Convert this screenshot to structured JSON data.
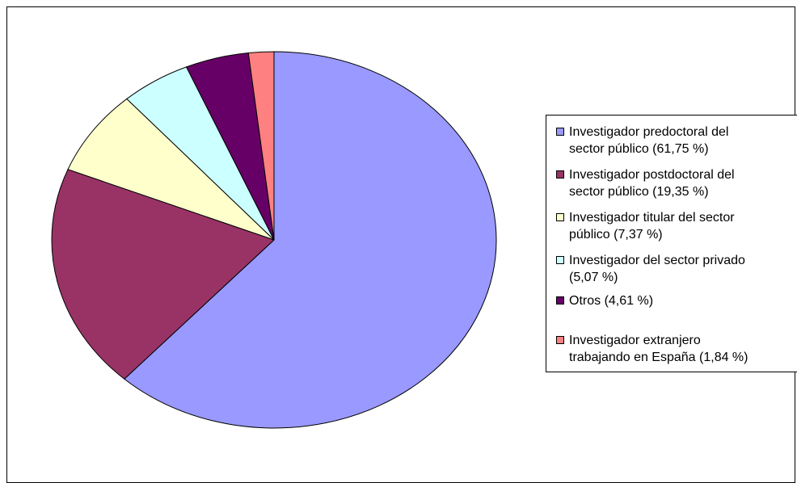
{
  "chart_data": {
    "type": "pie",
    "title": "",
    "slices": [
      {
        "label": "Investigador predoctoral del\nsector público (61,75 %)",
        "value": 61.75,
        "color": "#9999FF"
      },
      {
        "label": "Investigador postdoctoral del\nsector público (19,35 %)",
        "value": 19.35,
        "color": "#993366"
      },
      {
        "label": "Investigador titular del sector\npúblico (7,37 %)",
        "value": 7.37,
        "color": "#FFFFCC"
      },
      {
        "label": "Investigador del sector privado\n(5,07 %)",
        "value": 5.07,
        "color": "#CCFFFF"
      },
      {
        "label": "Otros (4,61 %)",
        "value": 4.61,
        "color": "#660066"
      },
      {
        "label": "Investigador extranjero\ntrabajando en España (1,84 %)",
        "value": 1.84,
        "color": "#FF8080"
      }
    ],
    "legend_position": "right"
  }
}
